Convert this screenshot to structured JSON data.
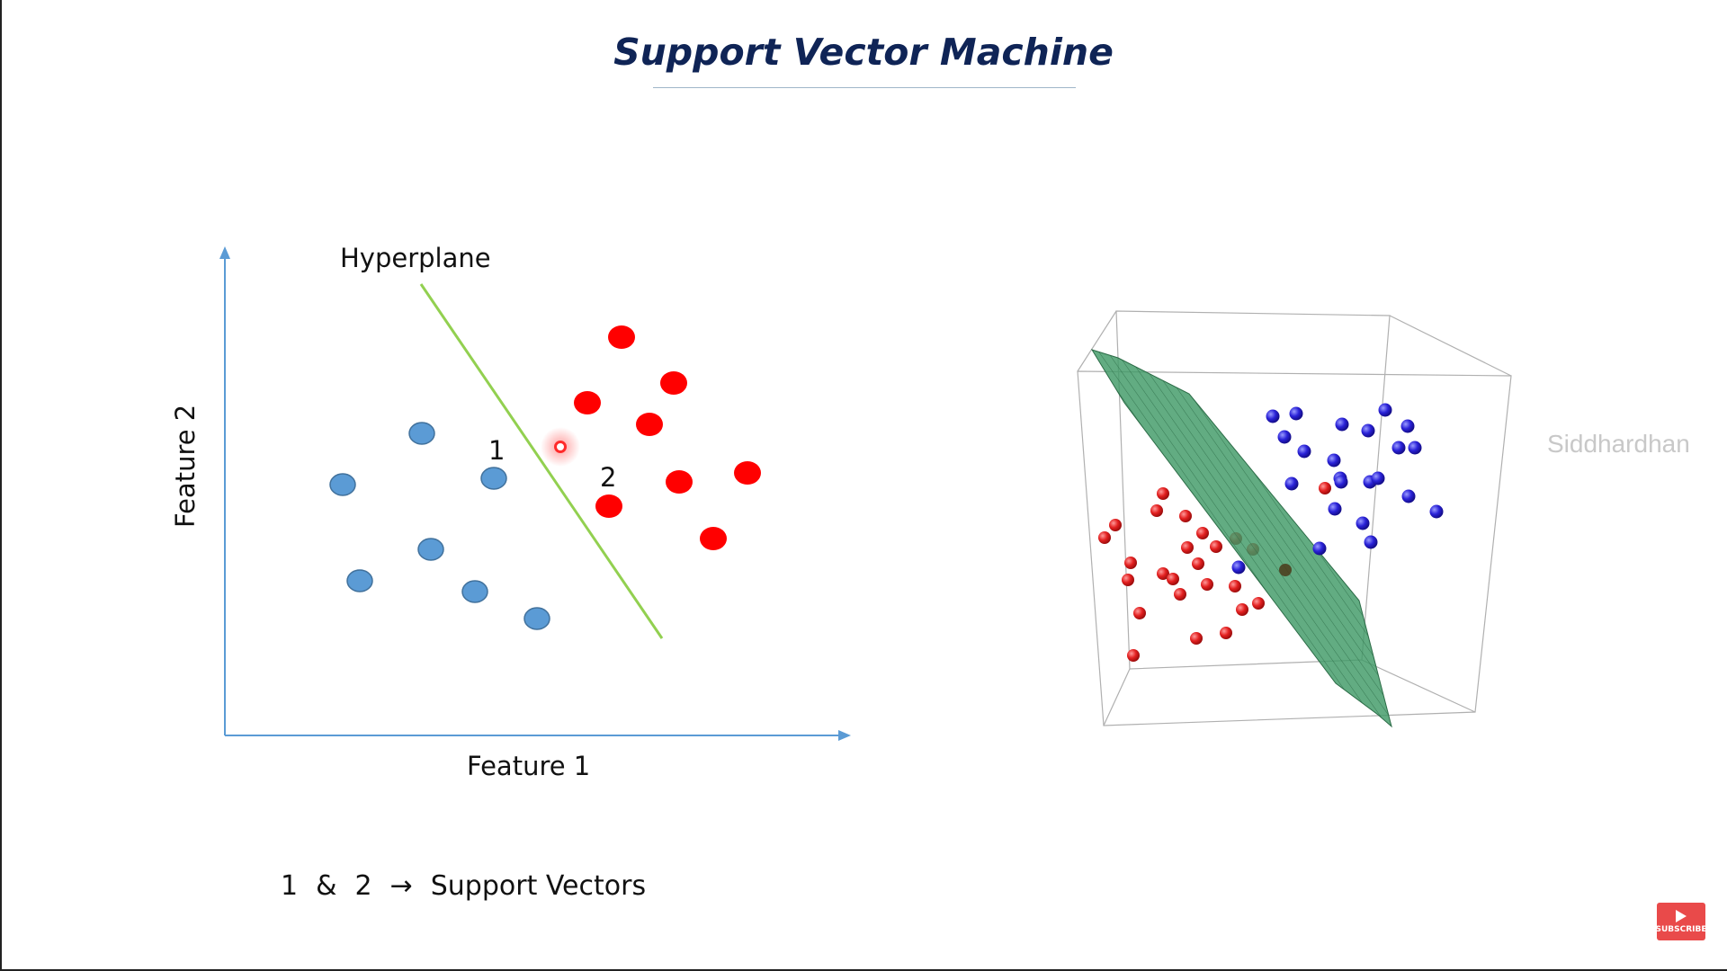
{
  "slide": {
    "title": "Support Vector Machine",
    "watermark": "Siddhardhan",
    "subscribe_label": "SUBSCRIBE"
  },
  "diagram2d": {
    "hyperplane_label": "Hyperplane",
    "xlabel": "Feature 1",
    "ylabel": "Feature 2",
    "sv1_label": "1",
    "sv2_label": "2",
    "blue_color": "#5b9bd5",
    "red_color": "#ff0000",
    "line_color": "#92d050",
    "axis_color": "#5b9bd5"
  },
  "note": {
    "part1": "1",
    "amp": "&",
    "part2": "2",
    "arrow": "→",
    "text": "Support Vectors"
  },
  "plot3d": {
    "plane_color": "#2e8b57",
    "red_color": "#e32020",
    "blue_color": "#2a22d8"
  }
}
